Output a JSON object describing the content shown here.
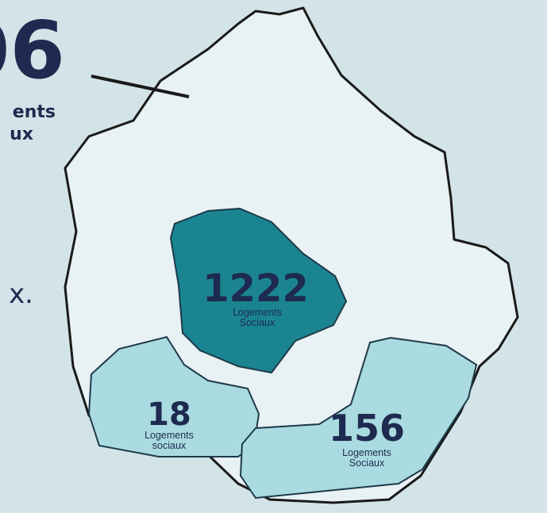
{
  "header": {
    "number": "06",
    "label_line1": "ents",
    "label_line2": "ux",
    "side_text": "x."
  },
  "regions": [
    {
      "value": 1222,
      "line1": "Logements",
      "line2": "Sociaux"
    },
    {
      "value": 18,
      "line1": "Logements",
      "line2": "sociaux"
    },
    {
      "value": 156,
      "line1": "Logements",
      "line2": "Sociaux"
    }
  ]
}
